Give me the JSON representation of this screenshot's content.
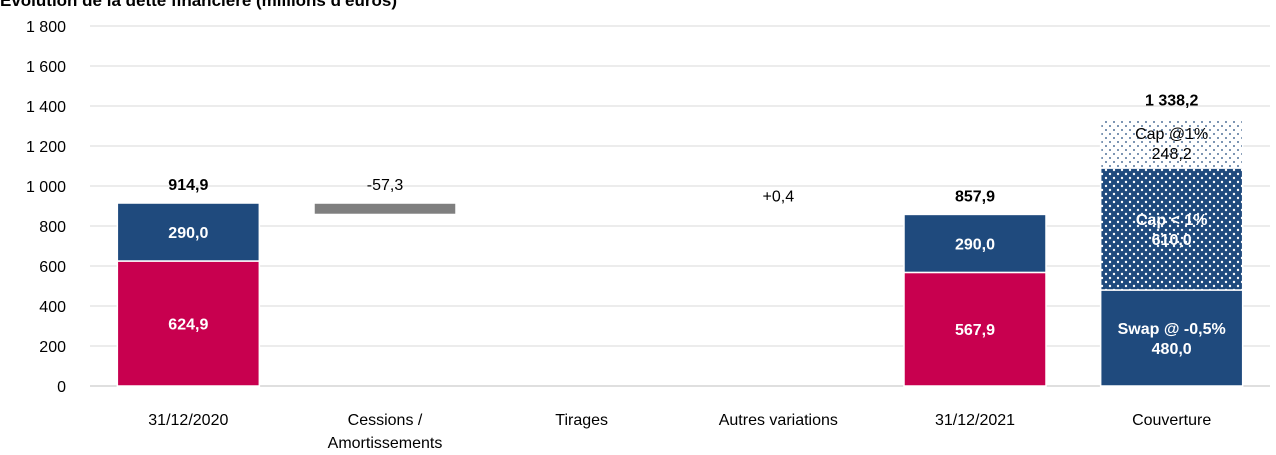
{
  "chart_data": {
    "type": "bar",
    "subtype": "waterfall-stacked",
    "title": "Evolution de la dette financière (millions d'euros)",
    "xlabel": "",
    "ylabel": "",
    "ylim": [
      0,
      1800
    ],
    "yticks": [
      {
        "value": 0,
        "label": "0"
      },
      {
        "value": 200,
        "label": "200"
      },
      {
        "value": 400,
        "label": "400"
      },
      {
        "value": 600,
        "label": "600"
      },
      {
        "value": 800,
        "label": "800"
      },
      {
        "value": 1000,
        "label": "1 000"
      },
      {
        "value": 1200,
        "label": "1 200"
      },
      {
        "value": 1400,
        "label": "1 400"
      },
      {
        "value": 1600,
        "label": "1 600"
      },
      {
        "value": 1800,
        "label": "1 800"
      }
    ],
    "grid": true,
    "legend": "none",
    "categories": [
      {
        "id": "c1",
        "label": [
          "31/12/2020"
        ]
      },
      {
        "id": "c2",
        "label": [
          "Cessions /",
          "Amortissements"
        ]
      },
      {
        "id": "c3",
        "label": [
          "Tirages"
        ]
      },
      {
        "id": "c4",
        "label": [
          "Autres variations"
        ]
      },
      {
        "id": "c5",
        "label": [
          "31/12/2021"
        ]
      },
      {
        "id": "c6",
        "label": [
          "Couverture"
        ]
      }
    ],
    "bars": [
      {
        "category": 0,
        "name": "",
        "start": 0,
        "value": 624.9,
        "color": "#c8004f",
        "pattern": false,
        "label": [
          "624,9"
        ],
        "label_style": "inside"
      },
      {
        "category": 0,
        "name": "",
        "start": 624.9,
        "value": 290.0,
        "color": "#1f4a7d",
        "pattern": false,
        "label": [
          "290,0"
        ],
        "label_style": "inside"
      },
      {
        "category": 1,
        "name": "",
        "start": 857.6,
        "value": 57.3,
        "color": "#7f7f7f",
        "pattern": false,
        "label": [],
        "label_style": "none"
      },
      {
        "category": 3,
        "name": "",
        "start": 857.6,
        "value": 0.4,
        "color": "#7f7f7f",
        "pattern": false,
        "label": [],
        "label_style": "none"
      },
      {
        "category": 4,
        "name": "",
        "start": 0,
        "value": 567.9,
        "color": "#c8004f",
        "pattern": false,
        "label": [
          "567,9"
        ],
        "label_style": "inside"
      },
      {
        "category": 4,
        "name": "",
        "start": 567.9,
        "value": 290.0,
        "color": "#1f4a7d",
        "pattern": false,
        "label": [
          "290,0"
        ],
        "label_style": "inside"
      },
      {
        "category": 5,
        "name": "Swap @ -0,5%",
        "start": 0,
        "value": 480.0,
        "color": "#1f4a7d",
        "pattern": false,
        "label": [
          "Swap @ -0,5%",
          "480,0"
        ],
        "label_style": "inside"
      },
      {
        "category": 5,
        "name": "Cap < 1%",
        "start": 480.0,
        "value": 610.0,
        "color": "#1f4a7d",
        "pattern": "dots-white",
        "label": [
          "Cap < 1%",
          "610,0"
        ],
        "label_style": "inside"
      },
      {
        "category": 5,
        "name": "Cap @1%",
        "start": 1090.0,
        "value": 248.2,
        "color": "#ffffff",
        "pattern": "dots-blue",
        "label": [
          "Cap @1%",
          "248,2"
        ],
        "label_style": "inside-dark"
      }
    ],
    "top_labels": [
      {
        "category": 0,
        "y": 914.9,
        "text": "914,9",
        "bold": true
      },
      {
        "category": 1,
        "y": 914.9,
        "text": "-57,3",
        "bold": false
      },
      {
        "category": 3,
        "y": 858.0,
        "text": "+0,4",
        "bold": false
      },
      {
        "category": 4,
        "y": 857.9,
        "text": "857,9",
        "bold": true
      },
      {
        "category": 5,
        "y": 1338.2,
        "text": "1 338,2",
        "bold": true
      }
    ]
  }
}
